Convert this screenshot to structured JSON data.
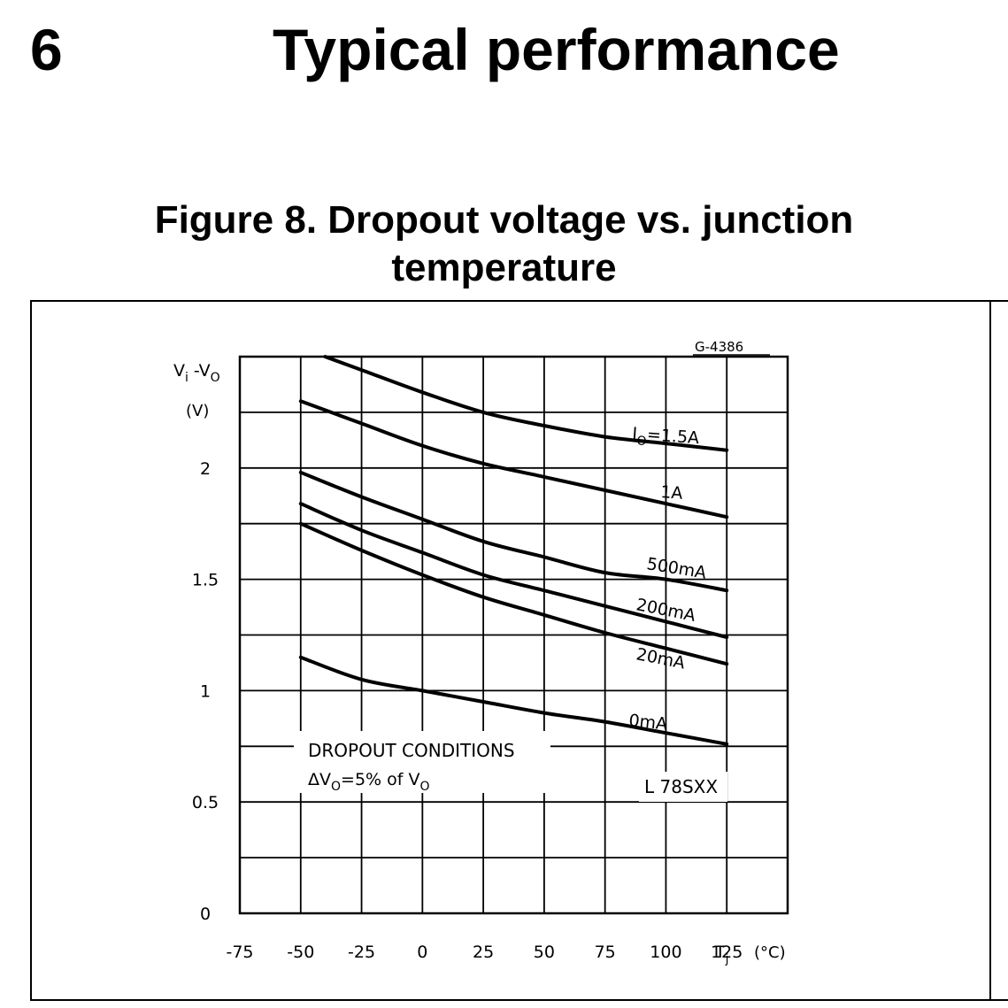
{
  "header": {
    "section_number": "6",
    "section_title": "Typical performance"
  },
  "figure": {
    "caption_line1": "Figure 8. Dropout voltage vs. junction",
    "caption_line2": "temperature",
    "code": "G-4386"
  },
  "chart_data": {
    "type": "line",
    "title": "Figure 8. Dropout voltage vs. junction temperature",
    "xlabel": "Tj (°C)",
    "ylabel": "Vi-Vo (V)",
    "xlim": [
      -75,
      150
    ],
    "ylim": [
      0,
      2.5
    ],
    "grid": true,
    "x_tick_labels": [
      "-75",
      "-50",
      "-25",
      "0",
      "25",
      "50",
      "75",
      "100",
      "125"
    ],
    "y_tick_labels": [
      "0",
      "0.5",
      "1",
      "1.5",
      "2"
    ],
    "series": [
      {
        "name": "IO=1.5A",
        "x": [
          -40,
          -25,
          0,
          25,
          50,
          75,
          100,
          125
        ],
        "y": [
          2.5,
          2.44,
          2.34,
          2.25,
          2.19,
          2.14,
          2.11,
          2.08
        ]
      },
      {
        "name": "1A",
        "x": [
          -50,
          -25,
          0,
          25,
          50,
          75,
          100,
          125
        ],
        "y": [
          2.3,
          2.2,
          2.1,
          2.02,
          1.96,
          1.9,
          1.84,
          1.78
        ]
      },
      {
        "name": "500mA",
        "x": [
          -50,
          -25,
          0,
          25,
          50,
          75,
          100,
          125
        ],
        "y": [
          1.98,
          1.87,
          1.77,
          1.67,
          1.6,
          1.53,
          1.5,
          1.45
        ]
      },
      {
        "name": "200mA",
        "x": [
          -50,
          -25,
          0,
          25,
          50,
          75,
          100,
          125
        ],
        "y": [
          1.84,
          1.72,
          1.62,
          1.52,
          1.45,
          1.38,
          1.31,
          1.24
        ]
      },
      {
        "name": "20mA",
        "x": [
          -50,
          -25,
          0,
          25,
          50,
          75,
          100,
          125
        ],
        "y": [
          1.75,
          1.63,
          1.52,
          1.42,
          1.34,
          1.26,
          1.19,
          1.12
        ]
      },
      {
        "name": "0mA",
        "x": [
          -50,
          -25,
          0,
          25,
          50,
          75,
          100,
          125
        ],
        "y": [
          1.15,
          1.05,
          1.0,
          0.95,
          0.9,
          0.86,
          0.81,
          0.76
        ]
      }
    ],
    "curve_labels": [
      "IO=1.5A",
      "1A",
      "500mA",
      "200mA",
      "20mA",
      "0mA"
    ],
    "annotations": {
      "conditions_line1": "DROPOUT CONDITIONS",
      "conditions_line2": "ΔVO=5% of VO",
      "device": "L 78SXX"
    }
  }
}
